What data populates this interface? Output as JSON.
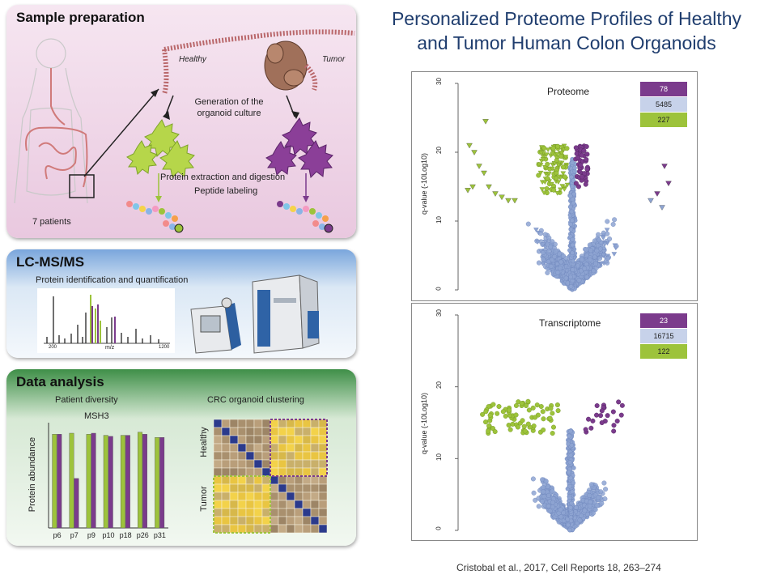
{
  "title": {
    "line1": "Personalized Proteome Profiles of Healthy",
    "line2": "and Tumor Human Colon Organoids"
  },
  "citation": "Cristobal et al., 2017, Cell Reports 18, 263–274",
  "colors": {
    "healthy": "#9dc33b",
    "tumor": "#7b3b8c",
    "nonsig": "#8ea4d2",
    "pink_panel": "#f1d9ea",
    "blue_panel": "#cfe0f3",
    "green_panel": "#4f9a54"
  },
  "sample_prep": {
    "title": "Sample preparation",
    "healthy_label": "Healthy",
    "tumor_label": "Tumor",
    "culture_text_1": "Generation of the",
    "culture_text_2": "organoid culture",
    "extraction_text": "Protein extraction and digestion",
    "labeling_text": "Peptide labeling",
    "patients_text": "7 patients"
  },
  "lcms": {
    "title": "LC-MS/MS",
    "subtitle": "Protein identification and quantification",
    "x_start": "200",
    "x_end": "1200",
    "x_label": "m/z"
  },
  "data_analysis": {
    "title": "Data analysis",
    "left_heading": "Patient diversity",
    "right_heading": "CRC organoid clustering",
    "healthy_label": "Healthy",
    "tumor_label": "Tumor"
  },
  "chart_data": [
    {
      "type": "bar",
      "title": "MSH3",
      "ylabel": "Protein abundance",
      "categories": [
        "p6",
        "p7",
        "p9",
        "p10",
        "p18",
        "p26",
        "p31"
      ],
      "series": [
        {
          "name": "Healthy",
          "values": [
            0.89,
            0.9,
            0.89,
            0.88,
            0.88,
            0.91,
            0.86
          ]
        },
        {
          "name": "Tumor",
          "values": [
            0.89,
            0.47,
            0.9,
            0.87,
            0.88,
            0.89,
            0.86
          ]
        }
      ]
    },
    {
      "type": "scatter",
      "title": "Proteome",
      "ylabel": "q-value (-10Log10)",
      "ylim": [
        0,
        30
      ],
      "yticks": [
        0,
        10,
        20,
        30
      ],
      "legend": [
        {
          "label": "78",
          "color": "#7b3b8c"
        },
        {
          "label": "5485",
          "color": "#c7d2ea"
        },
        {
          "label": "227",
          "color": "#9dc33b"
        }
      ]
    },
    {
      "type": "scatter",
      "title": "Transcriptome",
      "ylabel": "q-value (-10Log10)",
      "ylim": [
        0,
        30
      ],
      "yticks": [
        0,
        10,
        20,
        30
      ],
      "legend": [
        {
          "label": "23",
          "color": "#7b3b8c"
        },
        {
          "label": "16715",
          "color": "#c7d2ea"
        },
        {
          "label": "122",
          "color": "#9dc33b"
        }
      ]
    }
  ]
}
